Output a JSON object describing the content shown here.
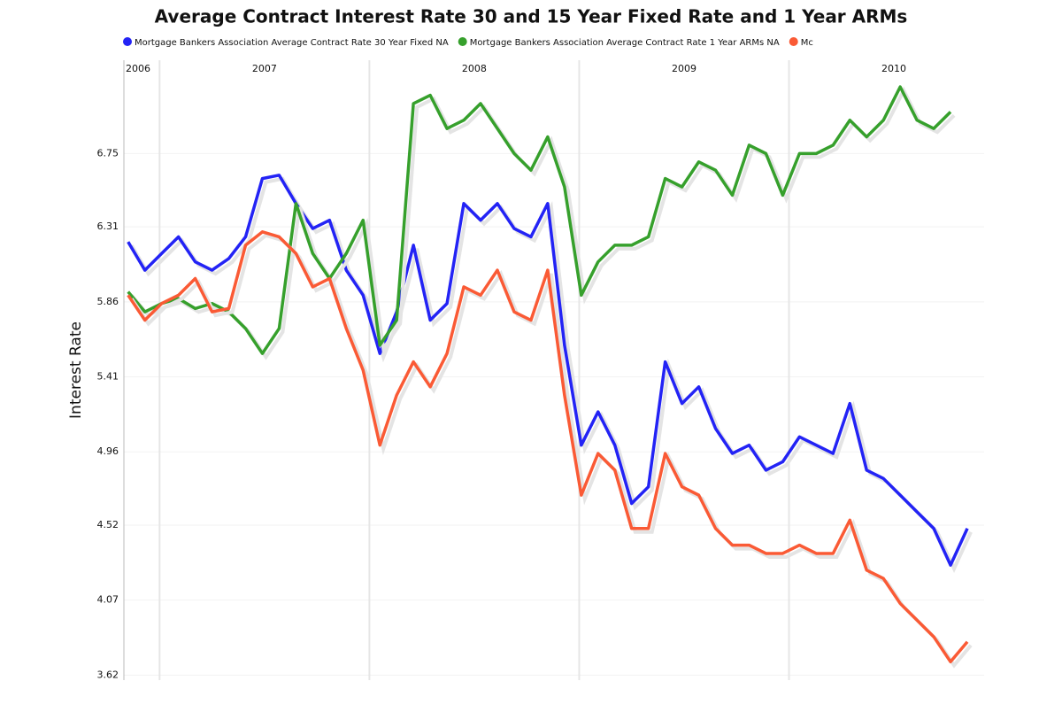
{
  "chart_data": {
    "type": "line",
    "title": "Average Contract Interest Rate 30 and 15 Year Fixed Rate and 1 Year ARMs",
    "y_label": "Interest Rate",
    "x": [
      2006.85,
      2006.93,
      2007.01,
      2007.09,
      2007.17,
      2007.25,
      2007.33,
      2007.41,
      2007.49,
      2007.57,
      2007.65,
      2007.73,
      2007.81,
      2007.89,
      2007.97,
      2008.05,
      2008.13,
      2008.21,
      2008.29,
      2008.37,
      2008.45,
      2008.53,
      2008.61,
      2008.69,
      2008.77,
      2008.85,
      2008.93,
      2009.01,
      2009.09,
      2009.17,
      2009.25,
      2009.33,
      2009.41,
      2009.49,
      2009.57,
      2009.65,
      2009.73,
      2009.81,
      2009.89,
      2009.97,
      2010.05,
      2010.13,
      2010.21,
      2010.29,
      2010.37,
      2010.45,
      2010.53,
      2010.61,
      2010.69,
      2010.77,
      2010.85
    ],
    "xlim": [
      2006.83,
      2010.93
    ],
    "xticks": [
      2007,
      2008,
      2009,
      2010
    ],
    "x_labels": [
      {
        "value": 2006.5,
        "label": "2006"
      },
      {
        "value": 2007.5,
        "label": "2007"
      },
      {
        "value": 2008.5,
        "label": "2008"
      },
      {
        "value": 2009.5,
        "label": "2009"
      },
      {
        "value": 2010.5,
        "label": "2010"
      }
    ],
    "ylim": [
      3.59,
      7.31
    ],
    "yticks": [
      3.62,
      4.07,
      4.52,
      4.96,
      5.41,
      5.86,
      6.31,
      6.75
    ],
    "grid": true,
    "series": [
      {
        "name": "Mortgage Bankers Association Average Contract Rate 30 Year Fixed NA",
        "color": "#2323f5",
        "values": [
          6.22,
          6.05,
          6.15,
          6.25,
          6.1,
          6.05,
          6.12,
          6.25,
          6.6,
          6.62,
          6.45,
          6.3,
          6.35,
          6.05,
          5.9,
          5.55,
          5.8,
          6.2,
          5.75,
          5.85,
          6.45,
          6.35,
          6.45,
          6.3,
          6.25,
          6.45,
          5.6,
          5.0,
          5.2,
          5.0,
          4.65,
          4.75,
          5.5,
          5.25,
          5.35,
          5.1,
          4.95,
          5.0,
          4.85,
          4.9,
          5.05,
          5.0,
          4.95,
          5.25,
          4.85,
          4.8,
          4.7,
          4.6,
          4.5,
          4.28,
          4.5
        ]
      },
      {
        "name": "Mortgage Bankers Association Average Contract Rate 1 Year ARMs NA",
        "color": "#36a02c",
        "values": [
          5.92,
          5.8,
          5.85,
          5.88,
          5.82,
          5.85,
          5.8,
          5.7,
          5.55,
          5.7,
          6.45,
          6.15,
          6.0,
          6.15,
          6.35,
          5.6,
          5.75,
          7.05,
          7.1,
          6.9,
          6.95,
          7.05,
          6.9,
          6.75,
          6.65,
          6.85,
          6.55,
          5.9,
          6.1,
          6.2,
          6.2,
          6.25,
          6.6,
          6.55,
          6.7,
          6.65,
          6.5,
          6.8,
          6.75,
          6.5,
          6.75,
          6.75,
          6.8,
          6.95,
          6.85,
          6.95,
          7.15,
          6.95,
          6.9,
          7.0,
          null
        ]
      },
      {
        "name": "Mc",
        "color": "#fa5a35",
        "values": [
          5.9,
          5.75,
          5.85,
          5.9,
          6.0,
          5.8,
          5.82,
          6.2,
          6.28,
          6.25,
          6.15,
          5.95,
          6.0,
          5.7,
          5.45,
          5.0,
          5.3,
          5.5,
          5.35,
          5.55,
          5.95,
          5.9,
          6.05,
          5.8,
          5.75,
          6.05,
          5.3,
          4.7,
          4.95,
          4.85,
          4.5,
          4.5,
          4.95,
          4.75,
          4.7,
          4.5,
          4.4,
          4.4,
          4.35,
          4.35,
          4.4,
          4.35,
          4.35,
          4.55,
          4.25,
          4.2,
          4.05,
          3.95,
          3.85,
          3.7,
          3.82
        ]
      }
    ]
  }
}
